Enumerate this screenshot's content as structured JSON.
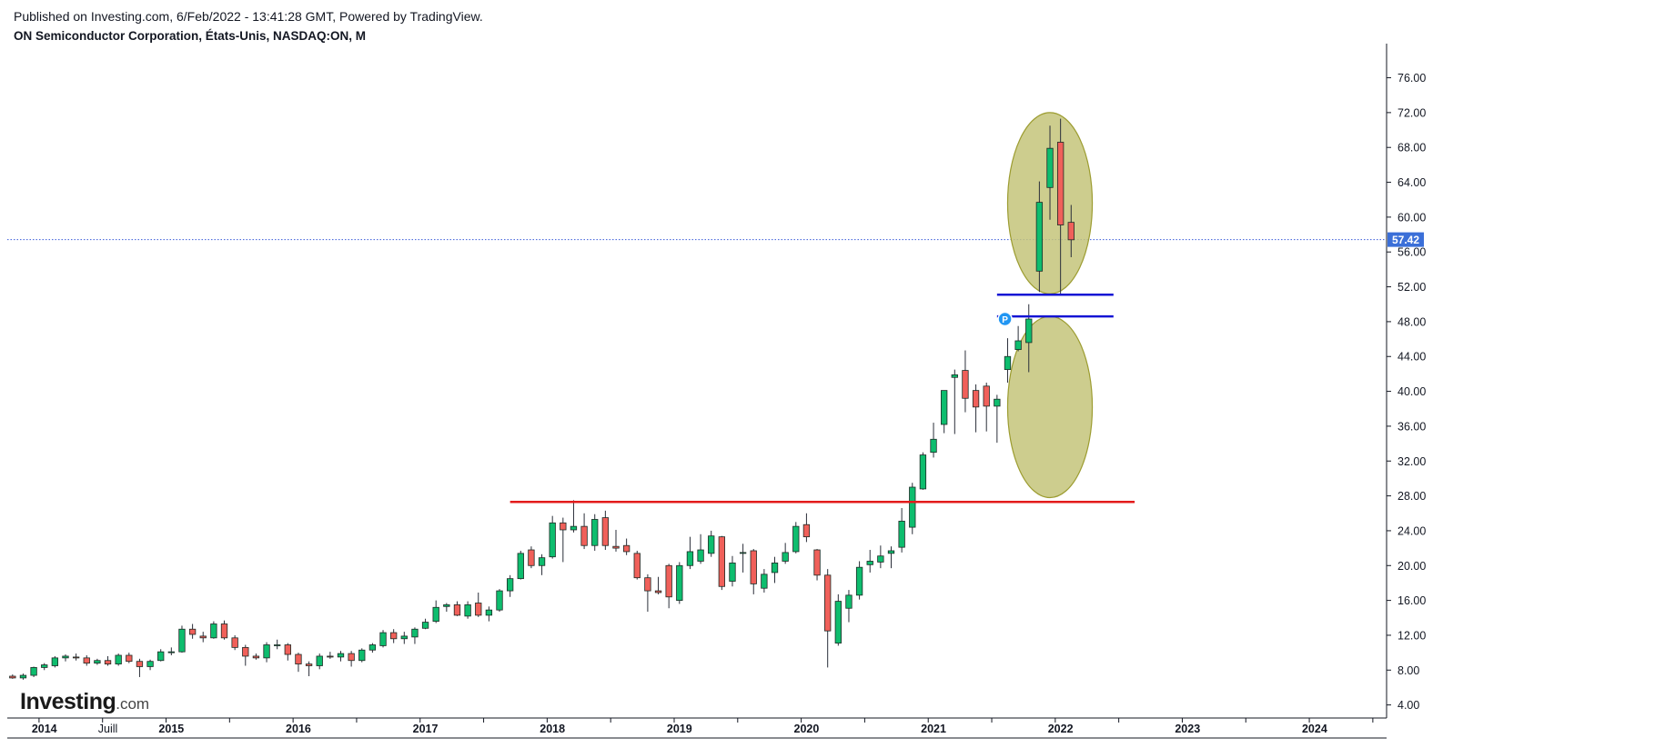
{
  "header": {
    "published": "Published on Investing.com, 6/Feb/2022 - 13:41:28 GMT, Powered by TradingView.",
    "title": "ON Semiconductor Corporation, États-Unis, NASDAQ:ON, M"
  },
  "logo": {
    "main": "Investing",
    "sub": ".com"
  },
  "colors": {
    "up": "#0ebd6e",
    "down": "#f0605a",
    "wick": "#2a2e39",
    "last_price_line": "#3a5bd9",
    "support_line": "#e31b1b",
    "channel_lines": "#1414d4",
    "ellipse_fill": "#c4c47a",
    "ellipse_stroke": "#9c9c30"
  },
  "chart_data": {
    "type": "candlestick",
    "interval": "M",
    "symbol": "NASDAQ:ON",
    "x_axis": {
      "labels": [
        {
          "date": "2014-01",
          "label": "2014",
          "bold": true
        },
        {
          "date": "2014-07",
          "label": "Juill",
          "bold": false
        },
        {
          "date": "2015-01",
          "label": "2015",
          "bold": true
        },
        {
          "date": "2016-01",
          "label": "2016",
          "bold": true
        },
        {
          "date": "2017-01",
          "label": "2017",
          "bold": true
        },
        {
          "date": "2018-01",
          "label": "2018",
          "bold": true
        },
        {
          "date": "2019-01",
          "label": "2019",
          "bold": true
        },
        {
          "date": "2020-01",
          "label": "2020",
          "bold": true
        },
        {
          "date": "2021-01",
          "label": "2021",
          "bold": true
        },
        {
          "date": "2022-01",
          "label": "2022",
          "bold": true
        },
        {
          "date": "2023-01",
          "label": "2023",
          "bold": true
        },
        {
          "date": "2024-01",
          "label": "2024",
          "bold": true
        }
      ],
      "range": [
        "2013-10",
        "2024-08"
      ]
    },
    "y_axis": {
      "ticks": [
        "4.00",
        "8.00",
        "12.00",
        "16.00",
        "20.00",
        "24.00",
        "28.00",
        "32.00",
        "36.00",
        "40.00",
        "44.00",
        "48.00",
        "52.00",
        "56.00",
        "60.00",
        "64.00",
        "68.00",
        "72.00",
        "76.00"
      ],
      "range": [
        2.5,
        79.5
      ],
      "side": "right"
    },
    "last_price": {
      "value": 57.42,
      "label": "57.42"
    },
    "candles": [
      {
        "d": "2013-10",
        "o": 7.3,
        "h": 7.5,
        "l": 7.0,
        "c": 7.1
      },
      {
        "d": "2013-11",
        "o": 7.1,
        "h": 7.6,
        "l": 6.9,
        "c": 7.4
      },
      {
        "d": "2013-12",
        "o": 7.4,
        "h": 8.4,
        "l": 7.2,
        "c": 8.3
      },
      {
        "d": "2014-01",
        "o": 8.3,
        "h": 8.8,
        "l": 8.0,
        "c": 8.6
      },
      {
        "d": "2014-02",
        "o": 8.5,
        "h": 9.6,
        "l": 8.3,
        "c": 9.4
      },
      {
        "d": "2014-03",
        "o": 9.4,
        "h": 9.8,
        "l": 9.0,
        "c": 9.6
      },
      {
        "d": "2014-04",
        "o": 9.5,
        "h": 9.9,
        "l": 9.1,
        "c": 9.4
      },
      {
        "d": "2014-05",
        "o": 9.4,
        "h": 9.7,
        "l": 8.5,
        "c": 8.8
      },
      {
        "d": "2014-06",
        "o": 8.8,
        "h": 9.3,
        "l": 8.6,
        "c": 9.1
      },
      {
        "d": "2014-07",
        "o": 9.1,
        "h": 9.6,
        "l": 8.5,
        "c": 8.7
      },
      {
        "d": "2014-08",
        "o": 8.7,
        "h": 9.9,
        "l": 8.5,
        "c": 9.7
      },
      {
        "d": "2014-09",
        "o": 9.7,
        "h": 10.0,
        "l": 8.8,
        "c": 9.0
      },
      {
        "d": "2014-10",
        "o": 9.0,
        "h": 9.3,
        "l": 7.2,
        "c": 8.4
      },
      {
        "d": "2014-11",
        "o": 8.4,
        "h": 9.2,
        "l": 8.0,
        "c": 9.0
      },
      {
        "d": "2014-12",
        "o": 9.1,
        "h": 10.4,
        "l": 9.0,
        "c": 10.1
      },
      {
        "d": "2015-01",
        "o": 10.1,
        "h": 10.6,
        "l": 9.7,
        "c": 10.1
      },
      {
        "d": "2015-02",
        "o": 10.1,
        "h": 13.1,
        "l": 10.0,
        "c": 12.7
      },
      {
        "d": "2015-03",
        "o": 12.7,
        "h": 13.3,
        "l": 11.6,
        "c": 12.1
      },
      {
        "d": "2015-04",
        "o": 11.9,
        "h": 12.4,
        "l": 11.2,
        "c": 11.7
      },
      {
        "d": "2015-05",
        "o": 11.7,
        "h": 13.6,
        "l": 11.6,
        "c": 13.3
      },
      {
        "d": "2015-06",
        "o": 13.3,
        "h": 13.7,
        "l": 11.5,
        "c": 11.7
      },
      {
        "d": "2015-07",
        "o": 11.7,
        "h": 12.0,
        "l": 10.3,
        "c": 10.6
      },
      {
        "d": "2015-08",
        "o": 10.6,
        "h": 10.9,
        "l": 8.5,
        "c": 9.6
      },
      {
        "d": "2015-09",
        "o": 9.6,
        "h": 9.9,
        "l": 9.2,
        "c": 9.4
      },
      {
        "d": "2015-10",
        "o": 9.4,
        "h": 11.2,
        "l": 8.9,
        "c": 10.9
      },
      {
        "d": "2015-11",
        "o": 10.9,
        "h": 11.5,
        "l": 10.4,
        "c": 10.9
      },
      {
        "d": "2015-12",
        "o": 10.9,
        "h": 11.1,
        "l": 9.1,
        "c": 9.8
      },
      {
        "d": "2016-01",
        "o": 9.8,
        "h": 10.0,
        "l": 7.8,
        "c": 8.7
      },
      {
        "d": "2016-02",
        "o": 8.7,
        "h": 9.0,
        "l": 7.3,
        "c": 8.5
      },
      {
        "d": "2016-03",
        "o": 8.5,
        "h": 9.9,
        "l": 8.1,
        "c": 9.6
      },
      {
        "d": "2016-04",
        "o": 9.6,
        "h": 10.1,
        "l": 9.3,
        "c": 9.5
      },
      {
        "d": "2016-05",
        "o": 9.5,
        "h": 10.2,
        "l": 9.0,
        "c": 9.9
      },
      {
        "d": "2016-06",
        "o": 9.9,
        "h": 10.2,
        "l": 8.4,
        "c": 9.1
      },
      {
        "d": "2016-07",
        "o": 9.1,
        "h": 10.5,
        "l": 8.9,
        "c": 10.3
      },
      {
        "d": "2016-08",
        "o": 10.3,
        "h": 11.1,
        "l": 10.0,
        "c": 10.9
      },
      {
        "d": "2016-09",
        "o": 10.8,
        "h": 12.6,
        "l": 10.6,
        "c": 12.3
      },
      {
        "d": "2016-10",
        "o": 12.3,
        "h": 12.7,
        "l": 11.1,
        "c": 11.6
      },
      {
        "d": "2016-11",
        "o": 11.6,
        "h": 12.4,
        "l": 11.0,
        "c": 11.9
      },
      {
        "d": "2016-12",
        "o": 11.8,
        "h": 12.9,
        "l": 11.0,
        "c": 12.7
      },
      {
        "d": "2017-01",
        "o": 12.8,
        "h": 13.9,
        "l": 12.7,
        "c": 13.5
      },
      {
        "d": "2017-02",
        "o": 13.6,
        "h": 16.0,
        "l": 13.4,
        "c": 15.2
      },
      {
        "d": "2017-03",
        "o": 15.3,
        "h": 15.7,
        "l": 14.7,
        "c": 15.5
      },
      {
        "d": "2017-04",
        "o": 15.5,
        "h": 15.9,
        "l": 14.2,
        "c": 14.3
      },
      {
        "d": "2017-05",
        "o": 14.2,
        "h": 15.9,
        "l": 13.9,
        "c": 15.5
      },
      {
        "d": "2017-06",
        "o": 15.7,
        "h": 16.9,
        "l": 14.1,
        "c": 14.3
      },
      {
        "d": "2017-07",
        "o": 14.3,
        "h": 15.3,
        "l": 13.6,
        "c": 14.9
      },
      {
        "d": "2017-08",
        "o": 14.9,
        "h": 17.3,
        "l": 14.7,
        "c": 17.1
      },
      {
        "d": "2017-09",
        "o": 17.1,
        "h": 18.9,
        "l": 16.4,
        "c": 18.5
      },
      {
        "d": "2017-10",
        "o": 18.5,
        "h": 21.7,
        "l": 18.4,
        "c": 21.4
      },
      {
        "d": "2017-11",
        "o": 21.8,
        "h": 22.2,
        "l": 19.7,
        "c": 20.0
      },
      {
        "d": "2017-12",
        "o": 20.0,
        "h": 21.3,
        "l": 18.9,
        "c": 20.9
      },
      {
        "d": "2018-01",
        "o": 21.0,
        "h": 25.7,
        "l": 20.8,
        "c": 24.9
      },
      {
        "d": "2018-02",
        "o": 24.9,
        "h": 25.5,
        "l": 20.4,
        "c": 24.1
      },
      {
        "d": "2018-03",
        "o": 24.1,
        "h": 27.5,
        "l": 23.8,
        "c": 24.5
      },
      {
        "d": "2018-04",
        "o": 24.5,
        "h": 26.0,
        "l": 21.9,
        "c": 22.3
      },
      {
        "d": "2018-05",
        "o": 22.3,
        "h": 25.9,
        "l": 21.7,
        "c": 25.3
      },
      {
        "d": "2018-06",
        "o": 25.5,
        "h": 26.3,
        "l": 21.8,
        "c": 22.3
      },
      {
        "d": "2018-07",
        "o": 22.2,
        "h": 24.1,
        "l": 21.6,
        "c": 22.0
      },
      {
        "d": "2018-08",
        "o": 22.3,
        "h": 23.1,
        "l": 21.2,
        "c": 21.6
      },
      {
        "d": "2018-09",
        "o": 21.4,
        "h": 21.7,
        "l": 18.4,
        "c": 18.6
      },
      {
        "d": "2018-10",
        "o": 18.6,
        "h": 19.0,
        "l": 14.7,
        "c": 17.1
      },
      {
        "d": "2018-11",
        "o": 17.1,
        "h": 18.7,
        "l": 16.7,
        "c": 16.9
      },
      {
        "d": "2018-12",
        "o": 20.0,
        "h": 20.2,
        "l": 15.1,
        "c": 16.4
      },
      {
        "d": "2019-01",
        "o": 16.0,
        "h": 20.4,
        "l": 15.6,
        "c": 20.0
      },
      {
        "d": "2019-02",
        "o": 20.0,
        "h": 23.3,
        "l": 19.6,
        "c": 21.6
      },
      {
        "d": "2019-03",
        "o": 20.5,
        "h": 23.6,
        "l": 20.2,
        "c": 21.8
      },
      {
        "d": "2019-04",
        "o": 21.4,
        "h": 24.0,
        "l": 21.0,
        "c": 23.4
      },
      {
        "d": "2019-05",
        "o": 23.3,
        "h": 23.4,
        "l": 17.2,
        "c": 17.6
      },
      {
        "d": "2019-06",
        "o": 18.2,
        "h": 21.1,
        "l": 17.6,
        "c": 20.3
      },
      {
        "d": "2019-07",
        "o": 21.5,
        "h": 22.5,
        "l": 19.2,
        "c": 21.5
      },
      {
        "d": "2019-08",
        "o": 21.7,
        "h": 21.9,
        "l": 16.7,
        "c": 17.9
      },
      {
        "d": "2019-09",
        "o": 17.4,
        "h": 19.6,
        "l": 16.9,
        "c": 19.0
      },
      {
        "d": "2019-10",
        "o": 19.2,
        "h": 21.0,
        "l": 18.0,
        "c": 20.3
      },
      {
        "d": "2019-11",
        "o": 20.5,
        "h": 22.6,
        "l": 20.2,
        "c": 21.5
      },
      {
        "d": "2019-12",
        "o": 21.6,
        "h": 25.0,
        "l": 21.4,
        "c": 24.5
      },
      {
        "d": "2020-01",
        "o": 24.7,
        "h": 26.0,
        "l": 22.7,
        "c": 23.3
      },
      {
        "d": "2020-02",
        "o": 21.8,
        "h": 21.9,
        "l": 18.3,
        "c": 18.9
      },
      {
        "d": "2020-03",
        "o": 18.9,
        "h": 19.6,
        "l": 8.3,
        "c": 12.5
      },
      {
        "d": "2020-04",
        "o": 11.1,
        "h": 16.7,
        "l": 10.8,
        "c": 15.9
      },
      {
        "d": "2020-05",
        "o": 15.1,
        "h": 17.2,
        "l": 13.5,
        "c": 16.6
      },
      {
        "d": "2020-06",
        "o": 16.6,
        "h": 20.5,
        "l": 16.1,
        "c": 19.8
      },
      {
        "d": "2020-07",
        "o": 20.1,
        "h": 21.8,
        "l": 19.2,
        "c": 20.5
      },
      {
        "d": "2020-08",
        "o": 20.4,
        "h": 22.3,
        "l": 19.7,
        "c": 21.1
      },
      {
        "d": "2020-09",
        "o": 21.4,
        "h": 22.2,
        "l": 19.7,
        "c": 21.7
      },
      {
        "d": "2020-10",
        "o": 22.1,
        "h": 26.6,
        "l": 21.5,
        "c": 25.1
      },
      {
        "d": "2020-11",
        "o": 24.4,
        "h": 29.5,
        "l": 23.6,
        "c": 29.0
      },
      {
        "d": "2020-12",
        "o": 28.8,
        "h": 33.0,
        "l": 28.7,
        "c": 32.7
      },
      {
        "d": "2021-01",
        "o": 33.0,
        "h": 36.4,
        "l": 32.4,
        "c": 34.5
      },
      {
        "d": "2021-02",
        "o": 36.2,
        "h": 39.9,
        "l": 35.2,
        "c": 40.1
      },
      {
        "d": "2021-03",
        "o": 41.6,
        "h": 42.5,
        "l": 35.1,
        "c": 41.9
      },
      {
        "d": "2021-04",
        "o": 42.4,
        "h": 44.7,
        "l": 37.6,
        "c": 39.2
      },
      {
        "d": "2021-05",
        "o": 40.1,
        "h": 40.8,
        "l": 35.3,
        "c": 38.2
      },
      {
        "d": "2021-06",
        "o": 40.6,
        "h": 41.0,
        "l": 35.4,
        "c": 38.3
      },
      {
        "d": "2021-07",
        "o": 38.3,
        "h": 39.6,
        "l": 34.1,
        "c": 39.1
      },
      {
        "d": "2021-08",
        "o": 42.5,
        "h": 46.1,
        "l": 41.0,
        "c": 44.0
      },
      {
        "d": "2021-09",
        "o": 44.8,
        "h": 47.5,
        "l": 44.6,
        "c": 45.8
      },
      {
        "d": "2021-10",
        "o": 45.6,
        "h": 50.0,
        "l": 42.2,
        "c": 48.3
      },
      {
        "d": "2021-11",
        "o": 53.8,
        "h": 64.1,
        "l": 51.4,
        "c": 61.7
      },
      {
        "d": "2021-12",
        "o": 63.4,
        "h": 70.5,
        "l": 59.7,
        "c": 67.9
      },
      {
        "d": "2022-01",
        "o": 68.6,
        "h": 71.3,
        "l": 51.1,
        "c": 59.1
      },
      {
        "d": "2022-02",
        "o": 59.4,
        "h": 61.4,
        "l": 55.4,
        "c": 57.4
      }
    ],
    "annotations": {
      "support_line": {
        "value": 27.3,
        "from": "2017-09",
        "to": "2022-08"
      },
      "channel_lines": [
        {
          "value": 51.1,
          "from": "2021-07",
          "to": "2022-06"
        },
        {
          "value": 48.6,
          "from": "2021-07",
          "to": "2022-06"
        }
      ],
      "ellipses": [
        {
          "center_date": "2021-12",
          "center_value": 61.6,
          "half_width_months": 4.0,
          "half_height_value": 10.4
        },
        {
          "center_date": "2021-12",
          "center_value": 38.2,
          "half_width_months": 4.0,
          "half_height_value": 10.4
        }
      ],
      "marker": {
        "date": "2021-08",
        "value": 48.3,
        "label": "P"
      }
    }
  }
}
